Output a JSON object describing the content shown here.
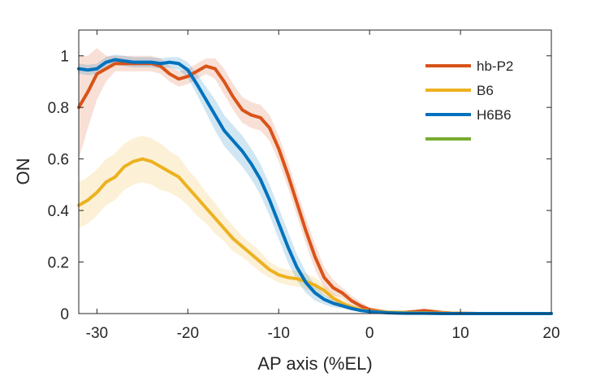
{
  "chart_data": {
    "type": "line",
    "title": "",
    "xlabel": "AP axis (%EL)",
    "ylabel": "ON",
    "xlim": [
      -32,
      20
    ],
    "ylim": [
      0,
      1.1
    ],
    "xticks": [
      -30,
      -20,
      -10,
      0,
      10,
      20
    ],
    "yticks": [
      0,
      0.2,
      0.4,
      0.6,
      0.8,
      1
    ],
    "x_tick_labels": [
      "-30",
      "-20",
      "-10",
      "0",
      "10",
      "20"
    ],
    "y_tick_labels": [
      "0",
      "0.2",
      "0.4",
      "0.6",
      "0.8",
      "1"
    ],
    "grid": false,
    "legend_position": "top-right",
    "series": [
      {
        "name": "hb-P2",
        "color": "#D95319",
        "x": [
          -32,
          -31,
          -30,
          -29,
          -28,
          -27,
          -26,
          -25,
          -24,
          -23,
          -22,
          -21,
          -20,
          -19,
          -18,
          -17,
          -16,
          -15,
          -14,
          -13,
          -12,
          -11,
          -10,
          -9,
          -8,
          -7,
          -6,
          -5,
          -4,
          -3,
          -2,
          -1,
          0,
          1,
          2,
          3,
          4,
          5,
          6,
          7,
          8,
          9,
          10,
          12,
          14,
          16,
          18,
          20
        ],
        "y": [
          0.8,
          0.86,
          0.93,
          0.95,
          0.97,
          0.97,
          0.97,
          0.97,
          0.97,
          0.96,
          0.93,
          0.91,
          0.92,
          0.94,
          0.96,
          0.95,
          0.9,
          0.84,
          0.79,
          0.77,
          0.76,
          0.72,
          0.64,
          0.54,
          0.43,
          0.32,
          0.22,
          0.14,
          0.1,
          0.08,
          0.05,
          0.03,
          0.015,
          0.01,
          0.005,
          0.003,
          0.005,
          0.008,
          0.012,
          0.008,
          0.004,
          0.002,
          0.001,
          0,
          0,
          0,
          0,
          0
        ],
        "band": [
          0.2,
          0.14,
          0.1,
          0.05,
          0.03,
          0.03,
          0.03,
          0.03,
          0.03,
          0.03,
          0.03,
          0.03,
          0.03,
          0.03,
          0.03,
          0.04,
          0.05,
          0.05,
          0.05,
          0.05,
          0.05,
          0.05,
          0.05,
          0.05,
          0.05,
          0.05,
          0.05,
          0.04,
          0.03,
          0.02,
          0.02,
          0.015,
          0.01,
          0.008,
          0.006,
          0.005,
          0.005,
          0.005,
          0.005,
          0.005,
          0.004,
          0.003,
          0.002,
          0.002,
          0.002,
          0.002,
          0.002,
          0.002
        ]
      },
      {
        "name": "B6",
        "color": "#EDB120",
        "x": [
          -32,
          -31,
          -30,
          -29,
          -28,
          -27,
          -26,
          -25,
          -24,
          -23,
          -22,
          -21,
          -20,
          -19,
          -18,
          -17,
          -16,
          -15,
          -14,
          -13,
          -12,
          -11,
          -10,
          -9,
          -8,
          -7,
          -6,
          -5,
          -4,
          -3,
          -2,
          -1,
          0,
          1,
          2,
          3,
          4,
          5,
          6,
          7,
          8,
          10,
          12,
          14,
          16,
          18,
          20
        ],
        "y": [
          0.42,
          0.44,
          0.47,
          0.51,
          0.53,
          0.57,
          0.59,
          0.6,
          0.59,
          0.57,
          0.55,
          0.53,
          0.49,
          0.45,
          0.41,
          0.37,
          0.33,
          0.29,
          0.26,
          0.23,
          0.2,
          0.17,
          0.15,
          0.14,
          0.135,
          0.125,
          0.11,
          0.09,
          0.06,
          0.04,
          0.025,
          0.015,
          0.01,
          0.008,
          0.006,
          0.005,
          0.004,
          0.003,
          0.003,
          0.002,
          0.002,
          0.001,
          0,
          0,
          0,
          0,
          0
        ],
        "band": [
          0.09,
          0.09,
          0.09,
          0.09,
          0.09,
          0.09,
          0.09,
          0.09,
          0.09,
          0.09,
          0.08,
          0.08,
          0.07,
          0.07,
          0.06,
          0.06,
          0.05,
          0.05,
          0.04,
          0.04,
          0.04,
          0.03,
          0.03,
          0.03,
          0.03,
          0.03,
          0.03,
          0.02,
          0.02,
          0.015,
          0.01,
          0.008,
          0.006,
          0.005,
          0.004,
          0.004,
          0.003,
          0.003,
          0.003,
          0.002,
          0.002,
          0.002,
          0.002,
          0.002,
          0.002,
          0.002,
          0.002
        ]
      },
      {
        "name": "H6B6",
        "color": "#0072BD",
        "x": [
          -32,
          -31,
          -30,
          -29,
          -28,
          -27,
          -26,
          -25,
          -24,
          -23,
          -22,
          -21,
          -20,
          -19,
          -18,
          -17,
          -16,
          -15,
          -14,
          -13,
          -12,
          -11,
          -10,
          -9,
          -8,
          -7,
          -6,
          -5,
          -4,
          -3,
          -2,
          -1,
          0,
          1,
          2,
          3,
          4,
          5,
          6,
          8,
          10,
          12,
          14,
          16,
          18,
          20
        ],
        "y": [
          0.95,
          0.945,
          0.95,
          0.975,
          0.985,
          0.98,
          0.975,
          0.975,
          0.975,
          0.97,
          0.975,
          0.97,
          0.945,
          0.89,
          0.83,
          0.77,
          0.71,
          0.67,
          0.63,
          0.58,
          0.52,
          0.44,
          0.35,
          0.26,
          0.18,
          0.12,
          0.08,
          0.055,
          0.04,
          0.03,
          0.02,
          0.012,
          0.008,
          0.005,
          0.003,
          0.002,
          0.001,
          0.001,
          0.001,
          0,
          0,
          0,
          0,
          0,
          0,
          0
        ],
        "band": [
          0.02,
          0.02,
          0.02,
          0.02,
          0.02,
          0.02,
          0.02,
          0.02,
          0.02,
          0.02,
          0.02,
          0.025,
          0.03,
          0.04,
          0.05,
          0.06,
          0.06,
          0.06,
          0.06,
          0.06,
          0.06,
          0.06,
          0.06,
          0.06,
          0.05,
          0.04,
          0.03,
          0.02,
          0.015,
          0.01,
          0.008,
          0.006,
          0.005,
          0.004,
          0.003,
          0.002,
          0.002,
          0.002,
          0.002,
          0.002,
          0.002,
          0.002,
          0.002,
          0.002,
          0.002,
          0.002
        ]
      },
      {
        "name": "",
        "color": "#77AC30",
        "x": [],
        "y": [],
        "band": []
      }
    ]
  }
}
